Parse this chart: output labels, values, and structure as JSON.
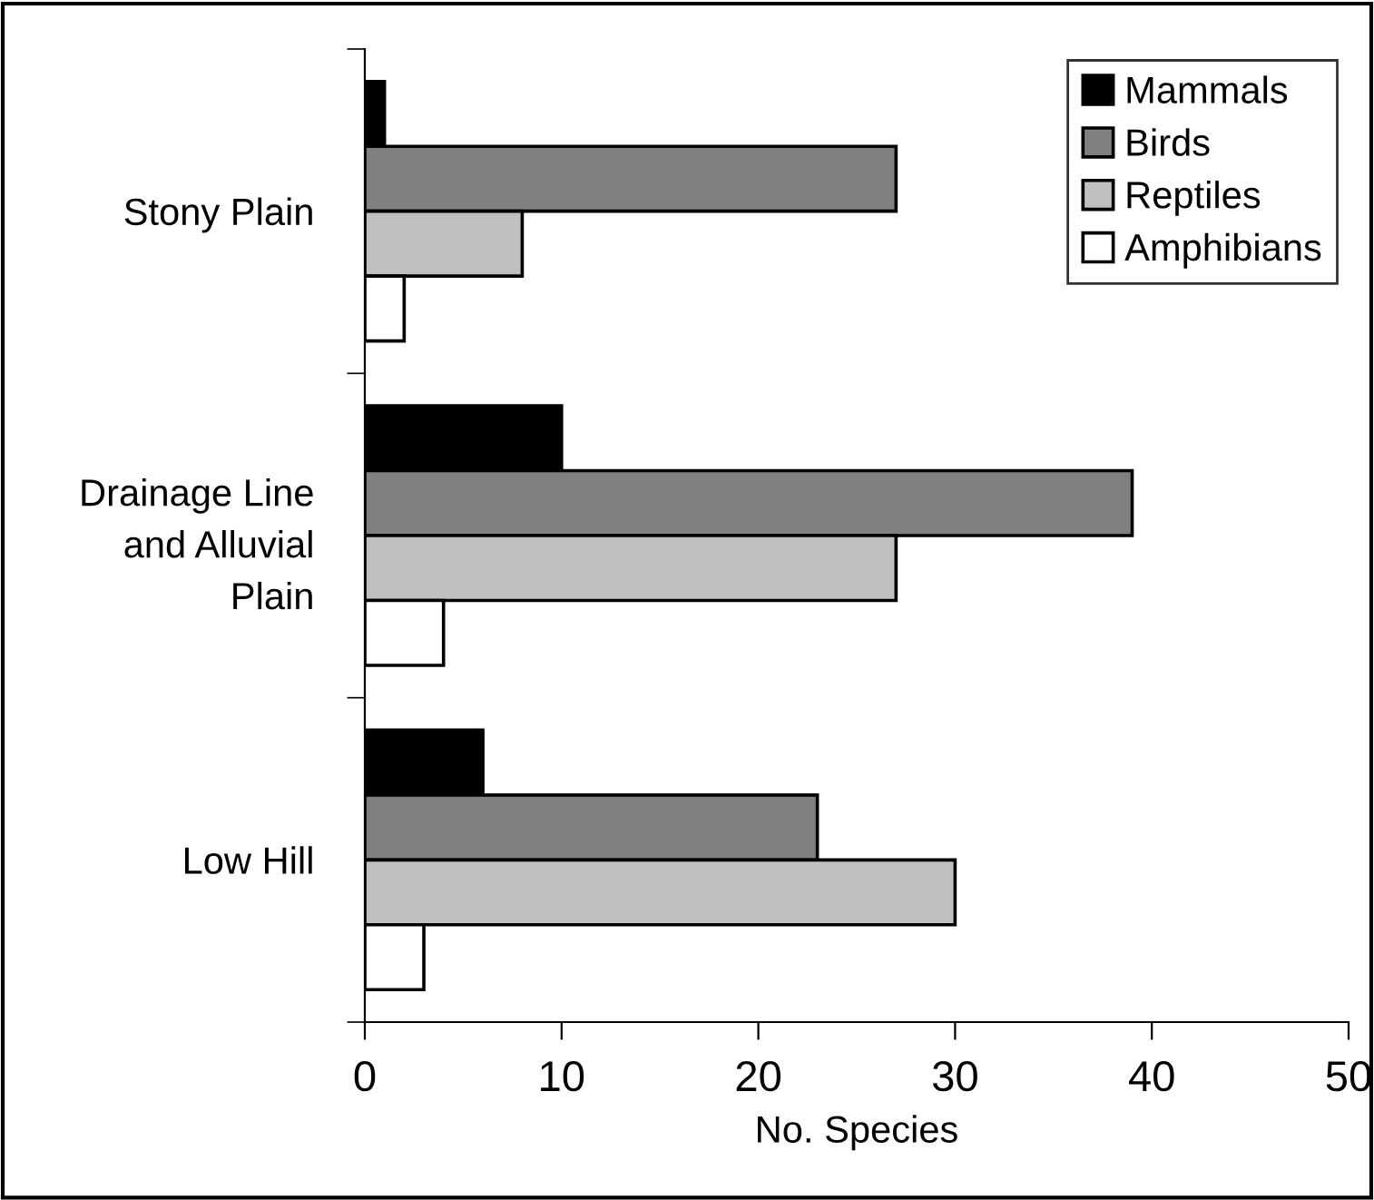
{
  "chart_data": {
    "type": "bar",
    "orientation": "horizontal",
    "xlabel": "No. Species",
    "categories": [
      "Stony Plain",
      "Drainage Line\nand Alluvial\nPlain",
      "Low Hill"
    ],
    "series": [
      {
        "name": "Mammals",
        "color": "#000000",
        "values": [
          1,
          10,
          6
        ]
      },
      {
        "name": "Birds",
        "color": "#808080",
        "values": [
          27,
          39,
          23
        ]
      },
      {
        "name": "Reptiles",
        "color": "#c0c0c0",
        "values": [
          8,
          27,
          30
        ]
      },
      {
        "name": "Amphibians",
        "color": "#ffffff",
        "values": [
          2,
          4,
          3
        ]
      }
    ],
    "xlim": [
      0,
      50
    ],
    "xticks": [
      0,
      10,
      20,
      30,
      40,
      50
    ],
    "grid": false,
    "legend": "top right"
  }
}
